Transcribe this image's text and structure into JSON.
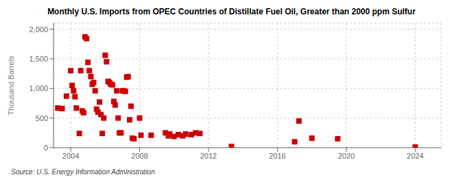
{
  "chart_data": {
    "type": "scatter",
    "title": "Monthly U.S. Imports from OPEC Countries of Distillate Fuel Oil, Greater than 2000 ppm Sulfur",
    "ylabel": "Thousand Barrels",
    "source": "Source: U.S. Energy Information Administration",
    "color": "#cc0000",
    "marker": "square",
    "grid": true,
    "xlim": [
      2003.0,
      2025.5
    ],
    "ylim": [
      0,
      2100
    ],
    "xticks": [
      2004,
      2008,
      2012,
      2016,
      2020,
      2024
    ],
    "yticks": [
      0,
      500,
      {
        "value": 1000,
        "label": "1,000"
      },
      {
        "value": 1500,
        "label": "1,500"
      },
      {
        "value": 2000,
        "label": "2,000"
      }
    ],
    "x": [
      2003.25,
      2003.5,
      2003.75,
      2004.0,
      2004.08,
      2004.17,
      2004.25,
      2004.33,
      2004.5,
      2004.58,
      2004.67,
      2004.75,
      2004.83,
      2004.92,
      2005.0,
      2005.08,
      2005.17,
      2005.25,
      2005.33,
      2005.42,
      2005.5,
      2005.58,
      2005.67,
      2005.75,
      2005.83,
      2005.92,
      2006.0,
      2006.08,
      2006.17,
      2006.25,
      2006.33,
      2006.42,
      2006.5,
      2006.58,
      2006.67,
      2006.75,
      2006.83,
      2006.92,
      2007.0,
      2007.08,
      2007.17,
      2007.25,
      2007.33,
      2007.42,
      2007.5,
      2007.58,
      2007.67,
      2008.0,
      2008.08,
      2008.67,
      2009.5,
      2009.67,
      2009.75,
      2010.0,
      2010.25,
      2010.5,
      2010.67,
      2011.0,
      2011.25,
      2011.5,
      2013.33,
      2017.0,
      2017.25,
      2018.0,
      2019.5,
      2024.0
    ],
    "values": [
      670,
      660,
      870,
      1300,
      1050,
      960,
      860,
      670,
      240,
      1300,
      620,
      590,
      1870,
      1840,
      1440,
      1300,
      1200,
      1070,
      1100,
      960,
      650,
      600,
      770,
      560,
      240,
      500,
      1560,
      1450,
      1120,
      1100,
      1070,
      1060,
      780,
      720,
      960,
      500,
      250,
      250,
      960,
      960,
      950,
      1190,
      1200,
      470,
      700,
      160,
      150,
      500,
      210,
      210,
      250,
      200,
      230,
      190,
      220,
      200,
      230,
      220,
      250,
      240,
      20,
      100,
      450,
      160,
      150,
      10
    ]
  }
}
